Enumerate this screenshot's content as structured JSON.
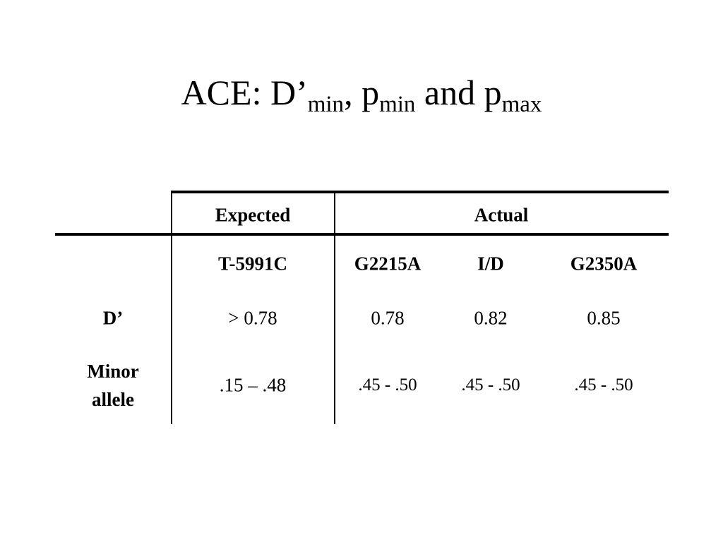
{
  "title": [
    "ACE: D’",
    "min",
    ", p",
    "min",
    " and p",
    "max"
  ],
  "table": {
    "header": {
      "expected": "Expected",
      "actual": "Actual"
    },
    "subheader": [
      "T-5991C",
      "G2215A",
      "I/D",
      "G2350A"
    ],
    "rows": [
      {
        "label": "D’",
        "values": [
          "> 0.78",
          "0.78",
          "0.82",
          "0.85"
        ]
      },
      {
        "label": "Minor allele",
        "values": [
          ".15 – .48",
          ".45 - .50",
          ".45 - .50",
          ".45 - .50"
        ]
      }
    ]
  }
}
